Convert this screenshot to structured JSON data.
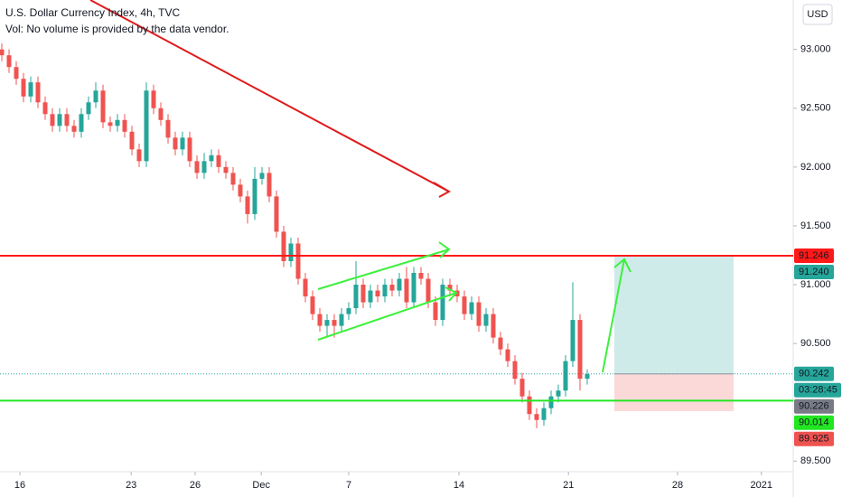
{
  "chart_data": {
    "type": "candlestick",
    "title": "U.S. Dollar Currency Index, 4h, TVC",
    "subtitle": "Vol: No volume is provided by the data vendor.",
    "currency_button": "USD",
    "open": [
      93.0,
      92.95,
      92.85,
      92.75,
      92.6,
      92.72,
      92.55,
      92.45,
      92.35,
      92.45,
      92.35,
      92.3,
      92.45,
      92.55,
      92.65,
      92.38,
      92.35,
      92.4,
      92.3,
      92.15,
      92.05,
      92.65,
      92.5,
      92.4,
      92.25,
      92.15,
      92.25,
      92.05,
      91.95,
      92.05,
      92.1,
      92.0,
      91.95,
      91.85,
      91.75,
      91.6,
      91.9,
      91.95,
      91.75,
      91.45,
      91.2,
      91.35,
      91.05,
      90.9,
      90.75,
      90.65,
      90.7,
      90.65,
      90.75,
      90.8,
      91.0,
      90.85,
      90.95,
      90.9,
      91.0,
      90.95,
      91.05,
      90.85,
      91.1,
      91.05,
      90.85,
      90.7,
      91.0,
      90.95,
      90.9,
      90.75,
      90.85,
      90.65,
      90.75,
      90.55,
      90.45,
      90.35,
      90.2,
      90.05,
      89.9,
      89.85,
      89.95,
      90.05,
      90.1,
      90.35,
      90.7,
      90.2
    ],
    "high": [
      93.05,
      93.0,
      92.9,
      92.8,
      92.77,
      92.77,
      92.6,
      92.5,
      92.5,
      92.5,
      92.4,
      92.5,
      92.6,
      92.72,
      92.7,
      92.43,
      92.45,
      92.45,
      92.35,
      92.2,
      92.72,
      92.7,
      92.55,
      92.45,
      92.3,
      92.3,
      92.3,
      92.1,
      92.12,
      92.15,
      92.15,
      92.05,
      92.0,
      91.9,
      91.8,
      92.0,
      92.0,
      92.0,
      91.8,
      91.5,
      91.4,
      91.4,
      91.1,
      90.95,
      90.8,
      90.75,
      90.75,
      90.8,
      90.85,
      91.2,
      91.05,
      91.0,
      91.0,
      91.05,
      91.05,
      91.1,
      91.15,
      91.15,
      91.15,
      91.1,
      90.9,
      91.05,
      91.05,
      91.0,
      90.95,
      90.9,
      90.9,
      90.8,
      90.8,
      90.6,
      90.5,
      90.4,
      90.25,
      90.1,
      89.95,
      90.0,
      90.1,
      90.15,
      90.4,
      91.02,
      90.75,
      90.28
    ],
    "low": [
      92.9,
      92.8,
      92.7,
      92.55,
      92.55,
      92.5,
      92.4,
      92.3,
      92.3,
      92.3,
      92.25,
      92.25,
      92.4,
      92.5,
      92.33,
      92.3,
      92.3,
      92.25,
      92.1,
      92.0,
      92.0,
      92.45,
      92.35,
      92.2,
      92.1,
      92.1,
      92.0,
      91.9,
      91.9,
      92.0,
      91.95,
      91.9,
      91.8,
      91.7,
      91.52,
      91.55,
      91.85,
      91.7,
      91.4,
      91.15,
      91.15,
      91.0,
      90.85,
      90.7,
      90.6,
      90.55,
      90.55,
      90.6,
      90.7,
      90.75,
      90.8,
      90.8,
      90.85,
      90.85,
      90.9,
      90.9,
      90.8,
      90.8,
      91.0,
      90.8,
      90.65,
      90.65,
      90.9,
      90.85,
      90.7,
      90.7,
      90.6,
      90.6,
      90.5,
      90.4,
      90.3,
      90.15,
      90.0,
      89.85,
      89.78,
      89.8,
      89.9,
      90.0,
      90.05,
      90.3,
      90.1,
      90.15
    ],
    "close": [
      92.95,
      92.85,
      92.75,
      92.6,
      92.72,
      92.55,
      92.45,
      92.35,
      92.45,
      92.35,
      92.3,
      92.45,
      92.55,
      92.65,
      92.38,
      92.35,
      92.4,
      92.3,
      92.15,
      92.05,
      92.65,
      92.5,
      92.4,
      92.25,
      92.15,
      92.25,
      92.05,
      91.95,
      92.05,
      92.1,
      92.0,
      91.95,
      91.85,
      91.75,
      91.6,
      91.9,
      91.95,
      91.75,
      91.45,
      91.2,
      91.35,
      91.05,
      90.9,
      90.75,
      90.65,
      90.7,
      90.65,
      90.75,
      90.8,
      91.0,
      90.85,
      90.95,
      90.9,
      91.0,
      90.95,
      91.05,
      90.85,
      91.1,
      91.05,
      90.85,
      90.7,
      91.0,
      90.95,
      90.9,
      90.75,
      90.85,
      90.65,
      90.75,
      90.55,
      90.45,
      90.35,
      90.2,
      90.05,
      89.9,
      89.85,
      89.95,
      90.05,
      90.1,
      90.35,
      90.7,
      90.2,
      90.24
    ],
    "up_color": "#26a69a",
    "down_color": "#ef5350",
    "xlim": [
      -0.25,
      109.5
    ],
    "xticks": [
      {
        "value": 2.5,
        "label": "16"
      },
      {
        "value": 17.9,
        "label": "23"
      },
      {
        "value": 26.75,
        "label": "26"
      },
      {
        "value": 35.9,
        "label": "Dec"
      },
      {
        "value": 48,
        "label": "7"
      },
      {
        "value": 63.25,
        "label": "14"
      },
      {
        "value": 78.4,
        "label": "21"
      },
      {
        "value": 93.5,
        "label": "28"
      },
      {
        "value": 105.1,
        "label": "2021"
      }
    ],
    "ylim": [
      89.41,
      93.42
    ],
    "yticks": [
      {
        "value": 93,
        "label": "93.000"
      },
      {
        "value": 92.5,
        "label": "92.500"
      },
      {
        "value": 92,
        "label": "92.000"
      },
      {
        "value": 91.5,
        "label": "91.500"
      },
      {
        "value": 91,
        "label": "91.000"
      },
      {
        "value": 90.5,
        "label": "90.500"
      },
      {
        "value": 89.5,
        "label": "89.500"
      }
    ],
    "price_lines": [
      {
        "value": 91.246,
        "color": "#ff1a1a"
      },
      {
        "value": 90.014,
        "color": "#22e622"
      }
    ],
    "position": {
      "entry": 90.242,
      "target": {
        "value": 91.24,
        "label": "91.240"
      },
      "stop": 89.925,
      "start": 84.75,
      "end": 101.25
    },
    "last_price": 90.226,
    "countdown": "03:28:45"
  }
}
